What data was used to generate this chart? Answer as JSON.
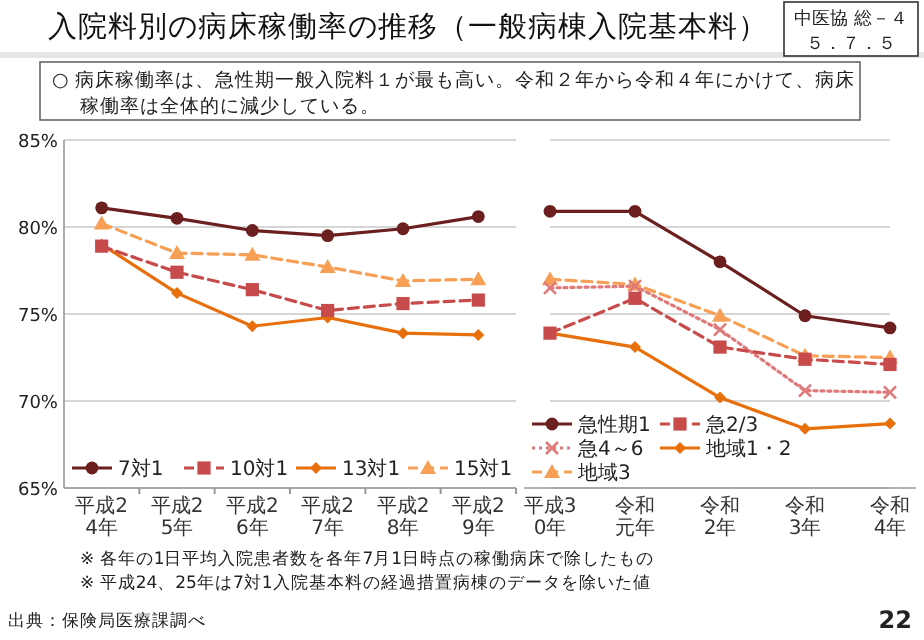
{
  "chart_data": [
    {
      "type": "line",
      "title": "入院料別の病床稼働率の推移（一般病棟入院基本料）",
      "subtitle": "○ 病床稼働率は、急性期一般入院料１が最も高い。令和２年から令和４年にかけて、病床稼働率は全体的に減少している。",
      "annotations": [
        "中医協 総－４",
        "５．７．５",
        "※ 各年の1日平均入院患者数を各年7月1日時点の稼働病床で除したもの",
        "※ 平成24、25年は7対1入院基本料の経過措置病棟のデータを除いた値",
        "出典：保険局医療課調べ",
        "22"
      ],
      "categories": [
        "平成24年",
        "平成25年",
        "平成26年",
        "平成27年",
        "平成28年",
        "平成29年"
      ],
      "ylim": [
        65,
        85
      ],
      "yticks": [
        {
          "value": 65,
          "label": "65%"
        },
        {
          "value": 70,
          "label": "70%"
        },
        {
          "value": 75,
          "label": "75%"
        },
        {
          "value": 80,
          "label": "80%"
        },
        {
          "value": 85,
          "label": "85%"
        }
      ],
      "grid": "y",
      "legend": "bottom",
      "series": [
        {
          "name": "7対1",
          "color": "#6b1f1f",
          "marker": "circle",
          "line_style": "solid",
          "values": [
            81.1,
            80.5,
            79.8,
            79.5,
            79.9,
            80.6
          ]
        },
        {
          "name": "10対1",
          "color": "#c84b4b",
          "marker": "square",
          "line_style": "dashed",
          "values": [
            78.9,
            77.4,
            76.4,
            75.2,
            75.6,
            75.8
          ]
        },
        {
          "name": "13対1",
          "color": "#e8700c",
          "marker": "diamond",
          "line_style": "solid",
          "values": [
            79.0,
            76.2,
            74.3,
            74.8,
            73.9,
            73.8
          ]
        },
        {
          "name": "15対1",
          "color": "#f7a055",
          "marker": "triangle",
          "line_style": "dashed",
          "values": [
            80.2,
            78.5,
            78.4,
            77.7,
            76.9,
            77.0
          ]
        }
      ]
    },
    {
      "type": "line",
      "categories": [
        "平成30年",
        "令和元年",
        "令和2年",
        "令和3年",
        "令和4年"
      ],
      "ylim": [
        65,
        85
      ],
      "yticks": [
        {
          "value": 65,
          "label": null
        },
        {
          "value": 70,
          "label": null
        },
        {
          "value": 75,
          "label": null
        },
        {
          "value": 80,
          "label": null
        },
        {
          "value": 85,
          "label": null
        }
      ],
      "tick_labels": "x",
      "grid": "y",
      "legend": "bottom left",
      "series": [
        {
          "name": "急性期1",
          "color": "#6b1f1f",
          "marker": "circle",
          "line_style": "solid",
          "values": [
            80.9,
            80.9,
            78.0,
            74.9,
            74.2
          ]
        },
        {
          "name": "急2/3",
          "color": "#c84b4b",
          "marker": "square",
          "line_style": "dashed",
          "values": [
            73.9,
            75.9,
            73.1,
            72.4,
            72.1
          ]
        },
        {
          "name": "急4～6",
          "color": "#e07a7a",
          "marker": "cross",
          "line_style": "dotted",
          "values": [
            76.5,
            76.6,
            74.1,
            70.6,
            70.5
          ]
        },
        {
          "name": "地域1・2",
          "color": "#e8700c",
          "marker": "diamond",
          "line_style": "solid",
          "values": [
            73.9,
            73.1,
            70.2,
            68.4,
            68.7
          ]
        },
        {
          "name": "地域3",
          "color": "#f7a055",
          "marker": "triangle",
          "line_style": "dashed",
          "values": [
            77.0,
            76.7,
            74.9,
            72.6,
            72.5
          ]
        }
      ]
    }
  ]
}
